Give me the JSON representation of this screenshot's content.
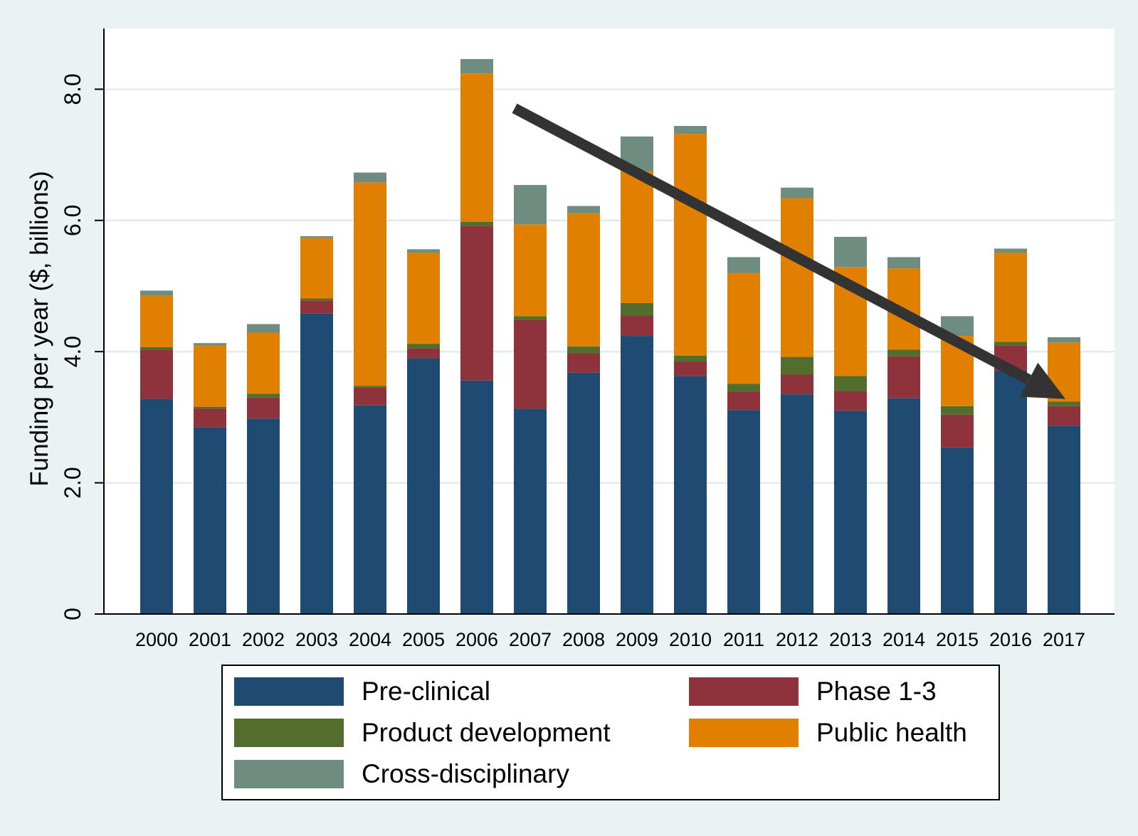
{
  "chart_data": {
    "type": "bar",
    "stacked": true,
    "title": "",
    "xlabel": "",
    "ylabel": "Funding per year ($, billions)",
    "ylim": [
      0,
      8.8
    ],
    "yticks": [
      0,
      2.0,
      4.0,
      6.0,
      8.0
    ],
    "ytick_labels": [
      "0",
      "2.0",
      "4.0",
      "6.0",
      "8.0"
    ],
    "grid": true,
    "legend_position": "bottom",
    "categories": [
      "2000",
      "2001",
      "2002",
      "2003",
      "2004",
      "2005",
      "2006",
      "2007",
      "2008",
      "2009",
      "2010",
      "2011",
      "2012",
      "2013",
      "2014",
      "2015",
      "2016",
      "2017"
    ],
    "series": [
      {
        "name": "Pre-clinical",
        "color": "#1f4a72",
        "values": [
          3.28,
          2.85,
          2.98,
          4.58,
          3.18,
          3.9,
          3.56,
          3.13,
          3.68,
          4.24,
          3.63,
          3.11,
          3.35,
          3.1,
          3.29,
          2.54,
          3.71,
          2.87
        ]
      },
      {
        "name": "Phase 1-3",
        "color": "#8e323b",
        "values": [
          0.75,
          0.28,
          0.32,
          0.2,
          0.27,
          0.15,
          2.36,
          1.35,
          0.3,
          0.31,
          0.22,
          0.28,
          0.3,
          0.3,
          0.64,
          0.5,
          0.38,
          0.3
        ]
      },
      {
        "name": "Product development",
        "color": "#526d2c",
        "values": [
          0.04,
          0.03,
          0.06,
          0.03,
          0.03,
          0.07,
          0.06,
          0.06,
          0.1,
          0.19,
          0.09,
          0.12,
          0.27,
          0.23,
          0.1,
          0.13,
          0.06,
          0.07
        ]
      },
      {
        "name": "Public health",
        "color": "#e17f01",
        "values": [
          0.78,
          0.94,
          0.93,
          0.92,
          3.1,
          1.39,
          2.26,
          1.4,
          2.03,
          2.01,
          3.38,
          1.69,
          2.42,
          1.66,
          1.24,
          1.07,
          1.36,
          0.9
        ]
      },
      {
        "name": "Cross-disciplinary",
        "color": "#6e8c80",
        "values": [
          0.08,
          0.03,
          0.13,
          0.03,
          0.15,
          0.05,
          0.22,
          0.6,
          0.11,
          0.53,
          0.12,
          0.24,
          0.16,
          0.46,
          0.17,
          0.3,
          0.06,
          0.08
        ]
      }
    ],
    "annotations": [
      {
        "type": "trend-arrow",
        "color": "#333333",
        "from": {
          "x": "2006",
          "y": 7.6
        },
        "to": {
          "x": "2017",
          "y": 4.2
        }
      }
    ]
  }
}
